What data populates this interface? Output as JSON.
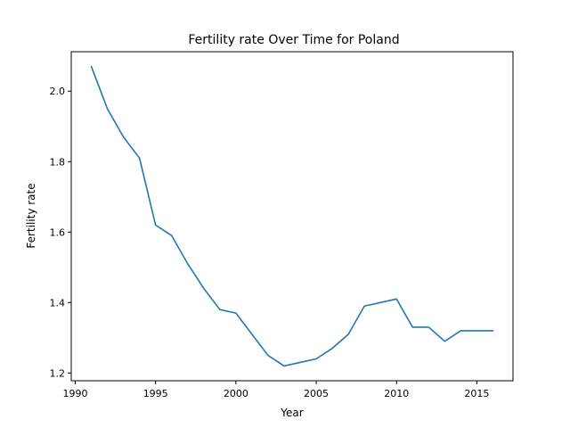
{
  "chart_data": {
    "type": "line",
    "title": "Fertility rate Over Time for Poland",
    "xlabel": "Year",
    "ylabel": "Fertility rate",
    "xlim": [
      1989.75,
      2017.25
    ],
    "ylim": [
      1.178,
      2.112
    ],
    "xticks": [
      1990,
      1995,
      2000,
      2005,
      2010,
      2015
    ],
    "yticks": [
      1.2,
      1.4,
      1.6,
      1.8,
      2.0
    ],
    "ytick_labels": [
      "1.2",
      "1.4",
      "1.6",
      "1.8",
      "2.0"
    ],
    "grid": false,
    "line_color": "#1f77b4",
    "series": [
      {
        "x": [
          1991,
          1992,
          1993,
          1994,
          1995,
          1996,
          1997,
          1998,
          1999,
          2000,
          2001,
          2002,
          2003,
          2004,
          2005,
          2006,
          2007,
          2008,
          2009,
          2010,
          2011,
          2012,
          2013,
          2014,
          2015,
          2016
        ],
        "values": [
          2.07,
          1.95,
          1.87,
          1.81,
          1.62,
          1.59,
          1.51,
          1.44,
          1.38,
          1.37,
          1.31,
          1.25,
          1.22,
          1.23,
          1.24,
          1.27,
          1.31,
          1.39,
          1.4,
          1.41,
          1.33,
          1.33,
          1.29,
          1.32,
          1.32,
          1.32
        ]
      }
    ]
  }
}
